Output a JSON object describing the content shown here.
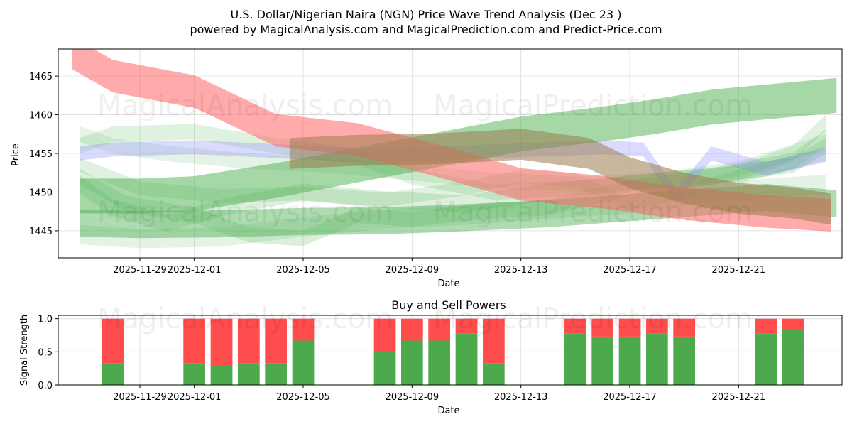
{
  "header": {
    "title_line1": "U.S. Dollar/Nigerian Naira (NGN) Price Wave Trend Analysis (Dec 23 )",
    "title_line2": "powered by MagicalAnalysis.com and MagicalPrediction.com and Predict-Price.com"
  },
  "watermarks": [
    "MagicalAnalysis.com",
    "MagicalPrediction.com"
  ],
  "colors": {
    "red_band": "#ff6666",
    "green_band": "#4caf50",
    "blue_band": "#8888ff",
    "brown_overlap": "#9b7b4f",
    "buy_bar": "#4caa4c",
    "sell_bar": "#ff4c4c",
    "grid": "#dcdcdc"
  },
  "chart_data": [
    {
      "type": "area",
      "title": "",
      "xlabel": "Date",
      "ylabel": "Price",
      "x_start_date": "2025-11-26",
      "xlim": [
        0.0,
        28.8
      ],
      "ylim": [
        1441.5,
        1468.5
      ],
      "x_ticks": [
        {
          "label": "2025-11-29",
          "day": 3
        },
        {
          "label": "2025-12-01",
          "day": 5
        },
        {
          "label": "2025-12-05",
          "day": 9
        },
        {
          "label": "2025-12-09",
          "day": 13
        },
        {
          "label": "2025-12-13",
          "day": 17
        },
        {
          "label": "2025-12-17",
          "day": 21
        },
        {
          "label": "2025-12-21",
          "day": 25
        }
      ],
      "y_ticks": [
        1445,
        1450,
        1455,
        1460,
        1465
      ],
      "series": [
        {
          "name": "red wave",
          "color": "red",
          "width": 4.2,
          "opacity": 0.55,
          "x": [
            0.5,
            2,
            5,
            8,
            11,
            14,
            17,
            20,
            23,
            26,
            28.4
          ],
          "y": [
            1468,
            1465,
            1463,
            1458,
            1456.8,
            1454,
            1451,
            1450,
            1448.5,
            1447.5,
            1447
          ]
        },
        {
          "name": "green rising wave",
          "color": "green",
          "width": 4.5,
          "opacity": 0.5,
          "x": [
            0.8,
            3,
            5,
            8,
            11,
            14,
            17,
            20,
            22,
            24,
            28.6
          ],
          "y": [
            1449.5,
            1449.5,
            1449.8,
            1451.5,
            1453.5,
            1455.5,
            1457.5,
            1458.8,
            1459.8,
            1461,
            1462.5
          ]
        },
        {
          "name": "green lower wave",
          "color": "green",
          "width": 3.5,
          "opacity": 0.45,
          "x": [
            0.8,
            3,
            6,
            9,
            12,
            15,
            18,
            21,
            24,
            26,
            28.6
          ],
          "y": [
            1446,
            1445.8,
            1445.9,
            1446.2,
            1446.3,
            1446.7,
            1447.2,
            1448,
            1448.8,
            1449.3,
            1448.5
          ]
        },
        {
          "name": "blue wave",
          "color": "blue",
          "width": 1.8,
          "opacity": 0.3,
          "x": [
            0.8,
            2,
            5,
            8,
            11,
            14,
            17,
            20,
            21.5,
            22.7,
            24,
            26,
            28.2
          ],
          "y": [
            1455,
            1455.5,
            1455.8,
            1455.3,
            1454.8,
            1455,
            1455.4,
            1455.8,
            1455.5,
            1449.5,
            1455,
            1453,
            1454.8
          ]
        },
        {
          "name": "brown overlap wave",
          "color": "brown",
          "width": 4.0,
          "opacity": 0.55,
          "x": [
            8.5,
            11,
            14,
            17,
            19.5,
            21,
            23,
            25,
            27,
            28.4
          ],
          "y": [
            1455,
            1455.4,
            1455.6,
            1456.2,
            1455,
            1452.5,
            1450.5,
            1449.2,
            1448.6,
            1447.8
          ]
        },
        {
          "name": "green light wave 1",
          "color": "green",
          "width": 2.0,
          "opacity": 0.18,
          "x": [
            0.8,
            2,
            5,
            8,
            11,
            13,
            16,
            19,
            22,
            25,
            27,
            28.2
          ],
          "y": [
            1456,
            1457.5,
            1457.8,
            1456,
            1454.5,
            1452,
            1450,
            1450.5,
            1451.5,
            1452.5,
            1455,
            1459
          ]
        },
        {
          "name": "green light wave 2",
          "color": "green",
          "width": 2.2,
          "opacity": 0.2,
          "x": [
            0.8,
            2,
            4,
            6,
            9,
            12,
            15,
            18,
            21,
            24,
            27,
            28.2
          ],
          "y": [
            1451,
            1448,
            1446,
            1448,
            1450,
            1449,
            1448.5,
            1450,
            1451,
            1452,
            1454,
            1457
          ]
        },
        {
          "name": "green light wave 3",
          "color": "green",
          "width": 2.0,
          "opacity": 0.2,
          "x": [
            0.8,
            2.5,
            5,
            7,
            9,
            11,
            13,
            15.5,
            18,
            21,
            24,
            27,
            28.2
          ],
          "y": [
            1452,
            1448.5,
            1447,
            1444.5,
            1444,
            1447,
            1446.5,
            1447.5,
            1448,
            1450.5,
            1452,
            1453.5,
            1456
          ]
        },
        {
          "name": "green light wave 4",
          "color": "green",
          "width": 1.8,
          "opacity": 0.18,
          "x": [
            0.8,
            3,
            6,
            9,
            12,
            15,
            17,
            19,
            21,
            23,
            25,
            28.2
          ],
          "y": [
            1453.5,
            1450.5,
            1449.5,
            1449.8,
            1449,
            1450.5,
            1452,
            1451.5,
            1448.5,
            1450,
            1452,
            1455
          ]
        },
        {
          "name": "green light wave 5",
          "color": "green",
          "width": 2.0,
          "opacity": 0.15,
          "x": [
            0.8,
            2,
            4,
            7,
            10,
            13,
            16,
            19,
            22,
            25,
            28.2
          ],
          "y": [
            1457.5,
            1456,
            1455,
            1454,
            1453.5,
            1452.5,
            1451.5,
            1451,
            1451.5,
            1453,
            1456.5
          ]
        },
        {
          "name": "green light wave 6",
          "color": "green",
          "width": 2.5,
          "opacity": 0.15,
          "x": [
            0.8,
            3,
            6,
            9,
            12,
            15,
            18,
            21,
            24,
            28.2
          ],
          "y": [
            1444.5,
            1444,
            1444.2,
            1445.5,
            1446.5,
            1447,
            1447.8,
            1448.5,
            1450,
            1451
          ]
        }
      ]
    },
    {
      "type": "bar",
      "title": "Buy and Sell Powers",
      "xlabel": "Date",
      "ylabel": "Signal Strength",
      "xlim": [
        0.0,
        28.8
      ],
      "ylim": [
        0,
        1.05
      ],
      "y_ticks": [
        0.0,
        0.5,
        1.0
      ],
      "y_tick_labels": [
        "0.0",
        "0.5",
        "1.0"
      ],
      "x_ticks": [
        {
          "label": "2025-11-29",
          "day": 3
        },
        {
          "label": "2025-12-01",
          "day": 5
        },
        {
          "label": "2025-12-05",
          "day": 9
        },
        {
          "label": "2025-12-09",
          "day": 13
        },
        {
          "label": "2025-12-13",
          "day": 17
        },
        {
          "label": "2025-12-17",
          "day": 21
        },
        {
          "label": "2025-12-21",
          "day": 25
        }
      ],
      "series": [
        {
          "name": "buy",
          "color": "buy_bar",
          "days": [
            2,
            5,
            6,
            7,
            8,
            9,
            12,
            13,
            14,
            15,
            16,
            19,
            20,
            21,
            22,
            23,
            26,
            27
          ],
          "values": [
            0.33,
            0.33,
            0.28,
            0.33,
            0.33,
            0.67,
            0.5,
            0.67,
            0.67,
            0.78,
            0.33,
            0.78,
            0.73,
            0.73,
            0.78,
            0.73,
            0.78,
            0.83
          ]
        },
        {
          "name": "sell",
          "color": "sell_bar",
          "days": [
            2,
            5,
            6,
            7,
            8,
            9,
            12,
            13,
            14,
            15,
            16,
            19,
            20,
            21,
            22,
            23,
            26,
            27
          ],
          "values": [
            0.67,
            0.67,
            0.72,
            0.67,
            0.67,
            0.33,
            0.5,
            0.33,
            0.33,
            0.22,
            0.67,
            0.22,
            0.27,
            0.27,
            0.22,
            0.27,
            0.22,
            0.17
          ]
        }
      ]
    }
  ]
}
